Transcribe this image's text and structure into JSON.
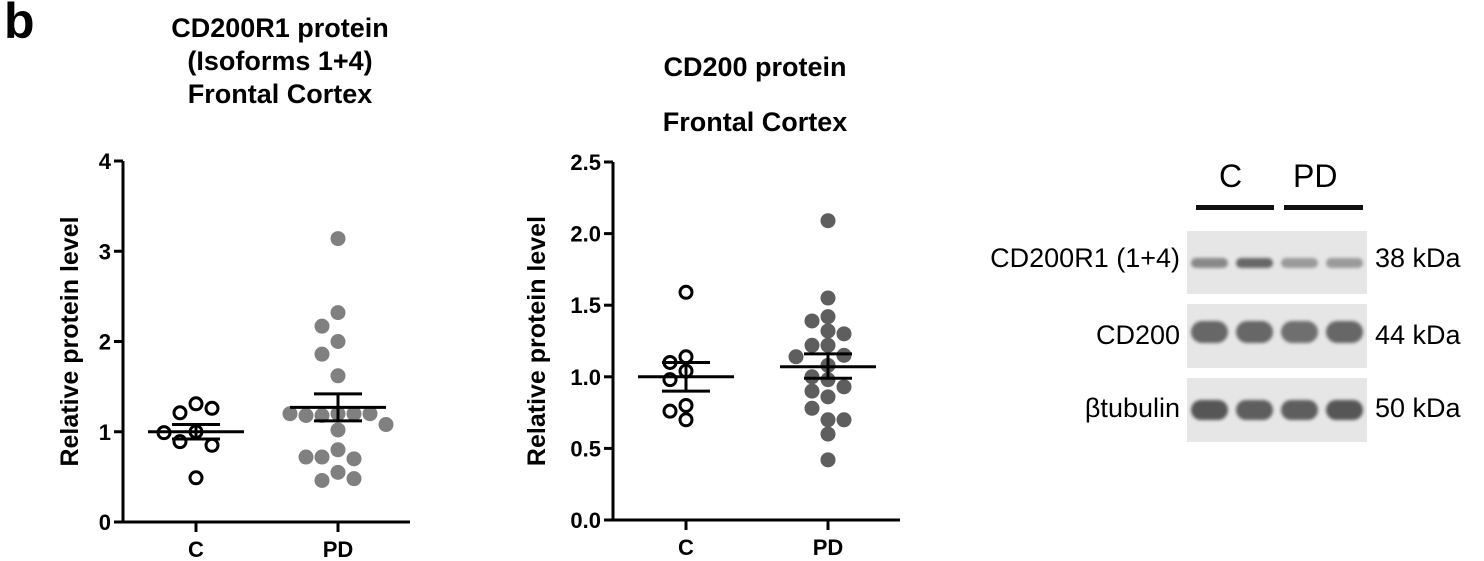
{
  "panel_label": "b",
  "chart_data": [
    {
      "type": "scatter",
      "title": "CD200R1 protein (Isoforms 1+4) Frontal Cortex",
      "title_lines": [
        "CD200R1 protein",
        "(Isoforms 1+4)",
        "Frontal Cortex"
      ],
      "xlabel": "",
      "ylabel": "Relative protein level",
      "categories": [
        "C",
        "PD"
      ],
      "ylim": [
        0,
        4
      ],
      "yticks": [
        "0",
        "1",
        "2",
        "3",
        "4"
      ],
      "grid": false,
      "legend": "none",
      "series": [
        {
          "name": "C",
          "marker": "open-circle",
          "color": "#000000",
          "values": [
            1.31,
            1.21,
            1.26,
            1.0,
            0.89,
            0.85,
            0.99,
            0.49
          ],
          "mean": 1.0,
          "sem_upper": 1.08,
          "sem_lower": 0.92
        },
        {
          "name": "PD",
          "marker": "filled-circle",
          "color": "#808080",
          "values": [
            3.14,
            2.32,
            2.17,
            2.0,
            1.86,
            1.62,
            1.2,
            1.18,
            1.2,
            1.18,
            1.2,
            1.2,
            1.08,
            1.02,
            0.8,
            0.72,
            0.7,
            0.72,
            0.55,
            0.46,
            0.48
          ],
          "mean": 1.27,
          "sem_upper": 1.42,
          "sem_lower": 1.12
        }
      ]
    },
    {
      "type": "scatter",
      "title": "CD200 protein Frontal Cortex",
      "title_lines": [
        "CD200 protein",
        "Frontal Cortex"
      ],
      "xlabel": "",
      "ylabel": "Relative protein level",
      "categories": [
        "C",
        "PD"
      ],
      "ylim": [
        0,
        2.5
      ],
      "yticks": [
        "0.0",
        "0.5",
        "1.0",
        "1.5",
        "2.0",
        "2.5"
      ],
      "grid": false,
      "legend": "none",
      "series": [
        {
          "name": "C",
          "marker": "open-circle",
          "color": "#000000",
          "values": [
            1.59,
            1.14,
            1.1,
            1.04,
            0.98,
            0.8,
            0.76,
            0.7
          ],
          "mean": 1.0,
          "sem_upper": 1.1,
          "sem_lower": 0.9
        },
        {
          "name": "PD",
          "marker": "filled-circle",
          "color": "#5e5e5e",
          "values": [
            2.09,
            1.55,
            1.42,
            1.39,
            1.32,
            1.3,
            1.22,
            1.22,
            1.15,
            1.14,
            1.08,
            1.0,
            0.98,
            0.93,
            0.9,
            0.86,
            0.78,
            0.7,
            0.7,
            0.6,
            0.42
          ],
          "mean": 1.07,
          "sem_upper": 1.16,
          "sem_lower": 0.99
        }
      ]
    }
  ],
  "western_blot": {
    "groups": [
      {
        "label": "C",
        "lanes": 2
      },
      {
        "label": "PD",
        "lanes": 2
      }
    ],
    "rows": [
      {
        "protein": "CD200R1 (1+4)",
        "size": "38 kDa",
        "band_intensity": [
          0.55,
          0.75,
          0.45,
          0.45
        ]
      },
      {
        "protein": "CD200",
        "size": "44 kDa",
        "band_intensity": [
          0.75,
          0.75,
          0.7,
          0.75
        ]
      },
      {
        "protein": "βtubulin",
        "size": "50 kDa",
        "band_intensity": [
          0.85,
          0.8,
          0.8,
          0.85
        ]
      }
    ]
  }
}
